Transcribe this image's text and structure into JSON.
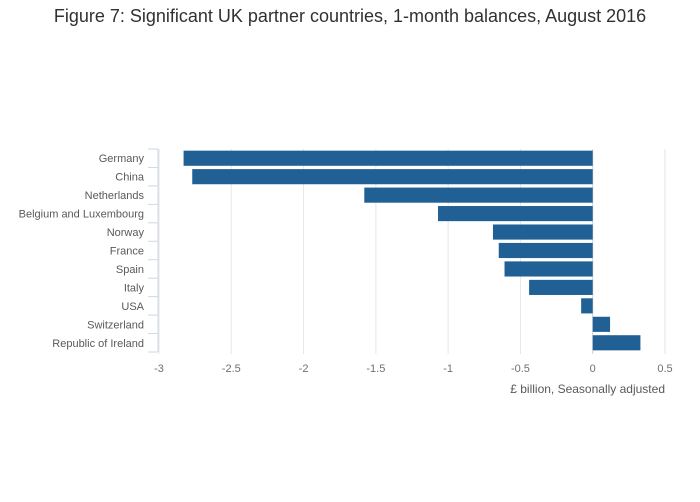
{
  "chart_data": {
    "type": "bar",
    "orientation": "horizontal",
    "title": "Figure 7: Significant UK partner countries, 1-month balances, August 2016",
    "xlabel": "£ billion, Seasonally adjusted",
    "ylabel": "",
    "categories": [
      "Germany",
      "China",
      "Netherlands",
      "Belgium and Luxembourg",
      "Norway",
      "France",
      "Spain",
      "Italy",
      "USA",
      "Switzerland",
      "Republic of Ireland"
    ],
    "values": [
      -2.83,
      -2.77,
      -1.58,
      -1.07,
      -0.69,
      -0.65,
      -0.61,
      -0.44,
      -0.08,
      0.12,
      0.33
    ],
    "xlim": [
      -3,
      0.5
    ],
    "xticks": [
      -3,
      -2.5,
      -2,
      -1.5,
      -1,
      -0.5,
      0,
      0.5
    ],
    "xtick_labels": [
      "-3",
      "-2.5",
      "-2",
      "-1.5",
      "-1",
      "-0.5",
      "0",
      "0.5"
    ],
    "grid": true,
    "bar_color": "#206095"
  }
}
